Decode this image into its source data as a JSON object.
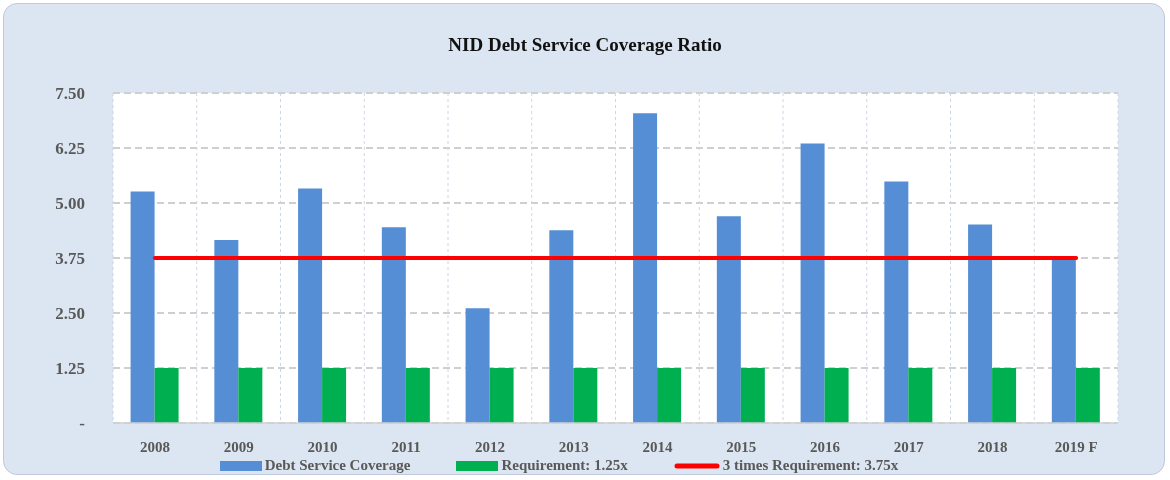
{
  "chart_data": {
    "type": "bar",
    "title": "NID Debt Service Coverage Ratio",
    "categories": [
      "2008",
      "2009",
      "2010",
      "2011",
      "2012",
      "2013",
      "2014",
      "2015",
      "2016",
      "2017",
      "2018",
      "2019 F"
    ],
    "series": [
      {
        "name": "Debt Service Coverage",
        "color": "#558ed5",
        "values": [
          5.26,
          4.16,
          5.33,
          4.45,
          2.61,
          4.38,
          7.04,
          4.7,
          6.35,
          5.49,
          4.51,
          3.75
        ]
      },
      {
        "name": "Requirement: 1.25x",
        "color": "#00b050",
        "values": [
          1.25,
          1.25,
          1.25,
          1.25,
          1.25,
          1.25,
          1.25,
          1.25,
          1.25,
          1.25,
          1.25,
          1.25
        ]
      },
      {
        "name": "3 times Requirement: 3.75x",
        "type": "line",
        "color": "#ff0000",
        "values": [
          3.75,
          3.75,
          3.75,
          3.75,
          3.75,
          3.75,
          3.75,
          3.75,
          3.75,
          3.75,
          3.75,
          3.75
        ]
      }
    ],
    "ylim": [
      0,
      7.5
    ],
    "yticks": [
      {
        "value": 0,
        "label": "-"
      },
      {
        "value": 1.25,
        "label": "1.25"
      },
      {
        "value": 2.5,
        "label": "2.50"
      },
      {
        "value": 3.75,
        "label": "3.75"
      },
      {
        "value": 5,
        "label": "5.00"
      },
      {
        "value": 6.25,
        "label": "6.25"
      },
      {
        "value": 7.5,
        "label": "7.50"
      }
    ],
    "grid": true,
    "legend": "bottom"
  }
}
